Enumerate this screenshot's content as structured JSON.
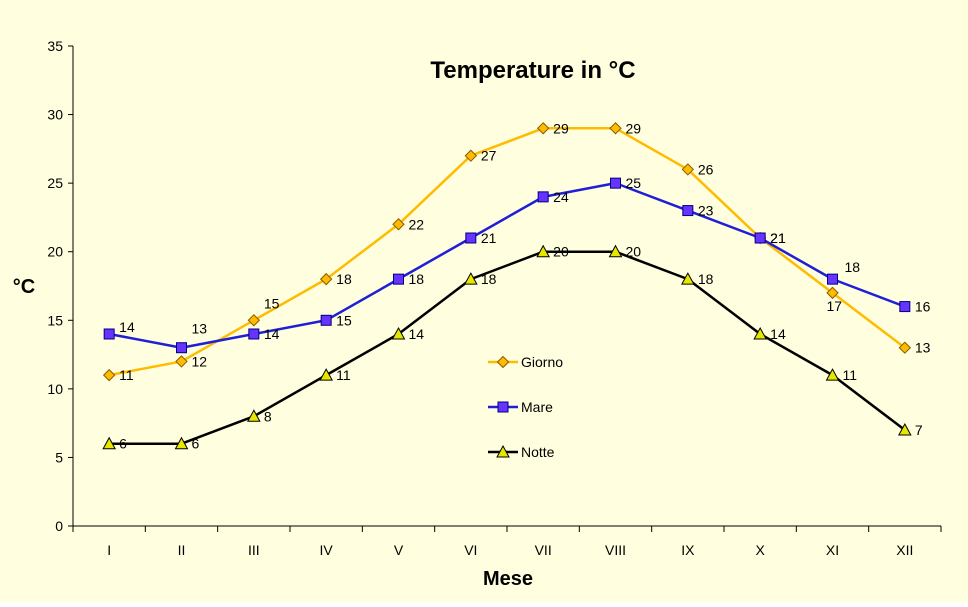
{
  "colors": {
    "background": "#ffffe0",
    "plot_area": "#ffffe0",
    "axis": "#000000",
    "giorno": "#ffbb00",
    "giorno_marker": "#ffbb00",
    "mare": "#1f1fd6",
    "mare_marker": "#6633ff",
    "notte": "#000000",
    "notte_marker": "#e6e600"
  },
  "chart_data": {
    "type": "line",
    "title": "Temperature in °C",
    "xlabel": "Mese",
    "ylabel": "°C",
    "categories": [
      "I",
      "II",
      "III",
      "IV",
      "V",
      "VI",
      "VII",
      "VIII",
      "IX",
      "X",
      "XI",
      "XII"
    ],
    "ylim": [
      0,
      35
    ],
    "yticks": [
      0,
      5,
      10,
      15,
      20,
      25,
      30,
      35
    ],
    "grid": false,
    "legend_position": "center",
    "series": [
      {
        "name": "Giorno",
        "marker": "diamond",
        "values": [
          11,
          12,
          15,
          18,
          22,
          27,
          29,
          29,
          26,
          21,
          17,
          13
        ]
      },
      {
        "name": "Mare",
        "marker": "square",
        "values": [
          14,
          13,
          14,
          15,
          18,
          21,
          24,
          25,
          23,
          21,
          18,
          16
        ]
      },
      {
        "name": "Notte",
        "marker": "triangle",
        "values": [
          6,
          6,
          8,
          11,
          14,
          18,
          20,
          20,
          18,
          14,
          11,
          7
        ]
      }
    ]
  }
}
